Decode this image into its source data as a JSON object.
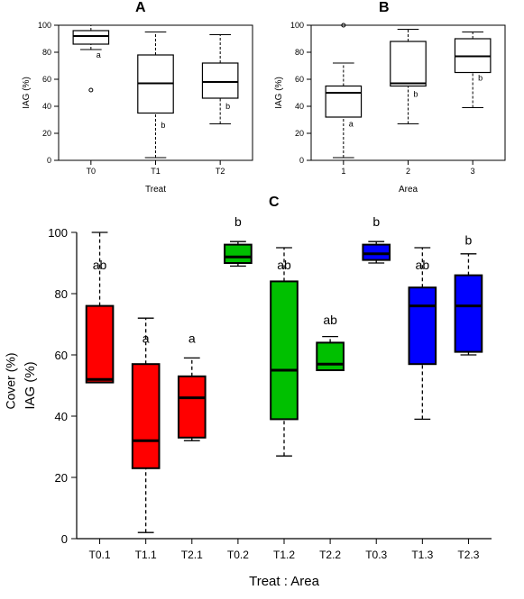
{
  "global": {
    "background": "#ffffff",
    "axis_color": "#000000",
    "axis_width": 1.2,
    "box_border_color": "#000000",
    "box_border_width": 1.5,
    "small_label_fontsize": 10
  },
  "panelA": {
    "label": "A",
    "ylabel": "IAG (%)",
    "xlabel": "Treat",
    "type": "boxplot",
    "fill": "#ffffff",
    "ylim": [
      0,
      100
    ],
    "ytick_step": 20,
    "yticks": [
      0,
      20,
      40,
      60,
      80,
      100
    ],
    "categories": [
      "T0",
      "T1",
      "T2"
    ],
    "boxes": [
      {
        "whisker_low": 82,
        "q1": 86,
        "median": 92,
        "q3": 96,
        "whisker_high": 100,
        "sig": "a",
        "sig_y": 76,
        "outlier": [
          52
        ]
      },
      {
        "whisker_low": 2,
        "q1": 35,
        "median": 57,
        "q3": 78,
        "whisker_high": 95,
        "sig": "b",
        "sig_y": 24
      },
      {
        "whisker_low": 27,
        "q1": 46,
        "median": 58,
        "q3": 72,
        "whisker_high": 93,
        "sig": "b",
        "sig_y": 38
      }
    ]
  },
  "panelB": {
    "label": "B",
    "ylabel": "IAG (%)",
    "xlabel": "Area",
    "type": "boxplot",
    "fill": "#ffffff",
    "ylim": [
      0,
      100
    ],
    "ytick_step": 20,
    "yticks": [
      0,
      20,
      40,
      60,
      80,
      100
    ],
    "categories": [
      "1",
      "2",
      "3"
    ],
    "boxes": [
      {
        "whisker_low": 2,
        "q1": 32,
        "median": 50,
        "q3": 55,
        "whisker_high": 72,
        "sig": "a",
        "sig_y": 25,
        "outlier": [
          100
        ]
      },
      {
        "whisker_low": 27,
        "q1": 55,
        "median": 57,
        "q3": 88,
        "whisker_high": 97,
        "sig": "b",
        "sig_y": 47
      },
      {
        "whisker_low": 39,
        "q1": 65,
        "median": 77,
        "q3": 90,
        "whisker_high": 95,
        "sig": "b",
        "sig_y": 59
      }
    ]
  },
  "panelC": {
    "label": "C",
    "ylabel": "IAG (%)",
    "side_label_hint": "Cover (%)",
    "xlabel": "Treat : Area",
    "type": "boxplot",
    "ylim": [
      0,
      100
    ],
    "ytick_step": 20,
    "yticks": [
      0,
      20,
      40,
      60,
      80,
      100
    ],
    "categories": [
      "T0.1",
      "T1.1",
      "T2.1",
      "T0.2",
      "T1.2",
      "T2.2",
      "T0.3",
      "T1.3",
      "T2.3"
    ],
    "colors": [
      "#ff0000",
      "#ff0000",
      "#ff0000",
      "#00c000",
      "#00c000",
      "#00c000",
      "#0000ff",
      "#0000ff",
      "#0000ff"
    ],
    "box_border_width": 2,
    "median_width": 3,
    "boxes": [
      {
        "whisker_low": 51,
        "q1": 51,
        "median": 52,
        "q3": 76,
        "whisker_high": 100,
        "sig": "ab",
        "sig_y": 88
      },
      {
        "whisker_low": 2,
        "q1": 23,
        "median": 32,
        "q3": 57,
        "whisker_high": 72,
        "sig": "a",
        "sig_y": 64
      },
      {
        "whisker_low": 32,
        "q1": 33,
        "median": 46,
        "q3": 53,
        "whisker_high": 59,
        "sig": "a",
        "sig_y": 64
      },
      {
        "whisker_low": 89,
        "q1": 90,
        "median": 92,
        "q3": 96,
        "whisker_high": 97,
        "sig": "b",
        "sig_y": 102
      },
      {
        "whisker_low": 27,
        "q1": 39,
        "median": 55,
        "q3": 84,
        "whisker_high": 95,
        "sig": "ab",
        "sig_y": 88
      },
      {
        "whisker_low": 55,
        "q1": 55,
        "median": 57,
        "q3": 64,
        "whisker_high": 66,
        "sig": "ab",
        "sig_y": 70
      },
      {
        "whisker_low": 90,
        "q1": 91,
        "median": 93,
        "q3": 96,
        "whisker_high": 97,
        "sig": "b",
        "sig_y": 102
      },
      {
        "whisker_low": 39,
        "q1": 57,
        "median": 76,
        "q3": 82,
        "whisker_high": 95,
        "sig": "ab",
        "sig_y": 88
      },
      {
        "whisker_low": 60,
        "q1": 61,
        "median": 76,
        "q3": 86,
        "whisker_high": 93,
        "sig": "b",
        "sig_y": 96
      }
    ]
  }
}
